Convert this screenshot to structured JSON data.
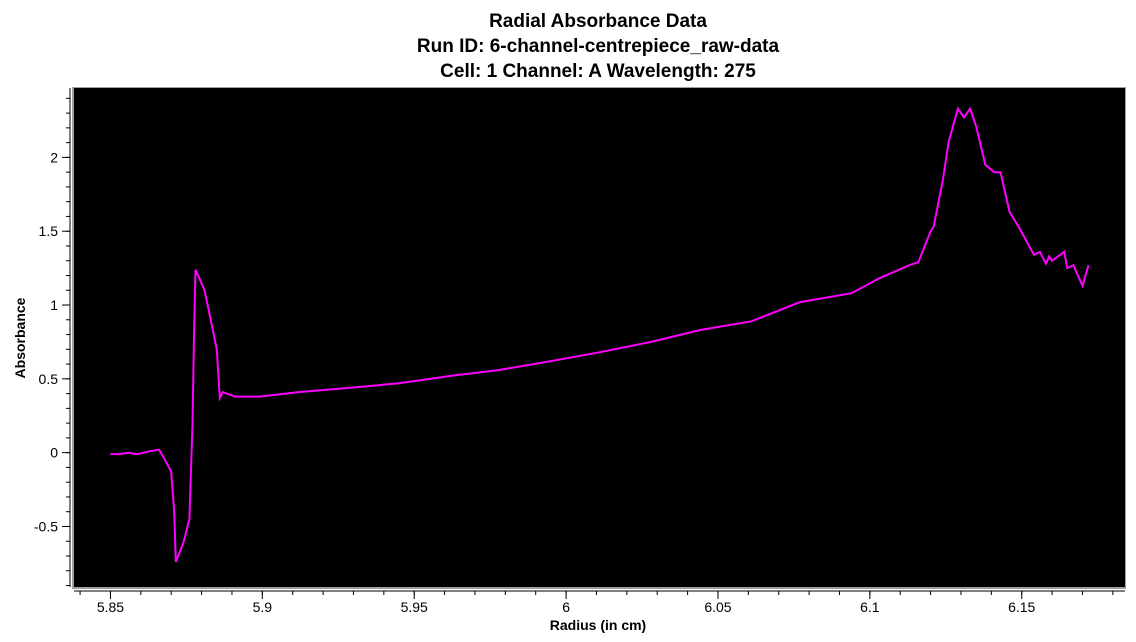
{
  "chart_data": {
    "type": "line",
    "title": [
      "Radial Absorbance Data",
      "Run ID: 6-channel-centrepiece_raw-data",
      "Cell: 1  Channel: A  Wavelength: 275"
    ],
    "xlabel": "Radius (in cm)",
    "ylabel": "Absorbance",
    "xlim": [
      5.838,
      6.184
    ],
    "ylim": [
      -0.91,
      2.47
    ],
    "xticks": [
      5.85,
      5.9,
      5.95,
      6,
      6.05,
      6.1,
      6.15
    ],
    "xtick_labels": [
      "5.85",
      "5.9",
      "5.95",
      "6",
      "6.05",
      "6.1",
      "6.15"
    ],
    "yticks": [
      -0.5,
      0,
      0.5,
      1,
      1.5,
      2
    ],
    "ytick_labels": [
      "-0.5",
      "0",
      "0.5",
      "1",
      "1.5",
      "2"
    ],
    "grid": false,
    "background": "#000000",
    "line_color": "#ff00ff",
    "series": [
      {
        "x": [
          5.85,
          5.853,
          5.856,
          5.859,
          5.863,
          5.866,
          5.868,
          5.87,
          5.871,
          5.8715,
          5.874,
          5.876,
          5.877,
          5.8775,
          5.878,
          5.881,
          5.883,
          5.885,
          5.886,
          5.887,
          5.891,
          5.899,
          5.912,
          5.929,
          5.945,
          5.962,
          5.978,
          5.995,
          6.011,
          6.028,
          6.044,
          6.061,
          6.077,
          6.094,
          6.103,
          6.113,
          6.116,
          6.12,
          6.121,
          6.124,
          6.126,
          6.129,
          6.131,
          6.133,
          6.135,
          6.138,
          6.141,
          6.143,
          6.146,
          6.149,
          6.154,
          6.156,
          6.158,
          6.159,
          6.16,
          6.164,
          6.165,
          6.167,
          6.17,
          6.172
        ],
        "y": [
          -0.01,
          -0.01,
          0.0,
          -0.01,
          0.01,
          0.02,
          -0.05,
          -0.13,
          -0.4,
          -0.74,
          -0.61,
          -0.45,
          0.19,
          0.79,
          1.24,
          1.1,
          0.9,
          0.7,
          0.37,
          0.41,
          0.38,
          0.38,
          0.41,
          0.44,
          0.47,
          0.52,
          0.56,
          0.62,
          0.68,
          0.75,
          0.83,
          0.89,
          1.02,
          1.08,
          1.18,
          1.27,
          1.29,
          1.5,
          1.53,
          1.84,
          2.11,
          2.33,
          2.27,
          2.33,
          2.21,
          1.95,
          1.9,
          1.9,
          1.63,
          1.53,
          1.34,
          1.36,
          1.28,
          1.33,
          1.3,
          1.36,
          1.25,
          1.27,
          1.13,
          1.27
        ]
      }
    ]
  }
}
